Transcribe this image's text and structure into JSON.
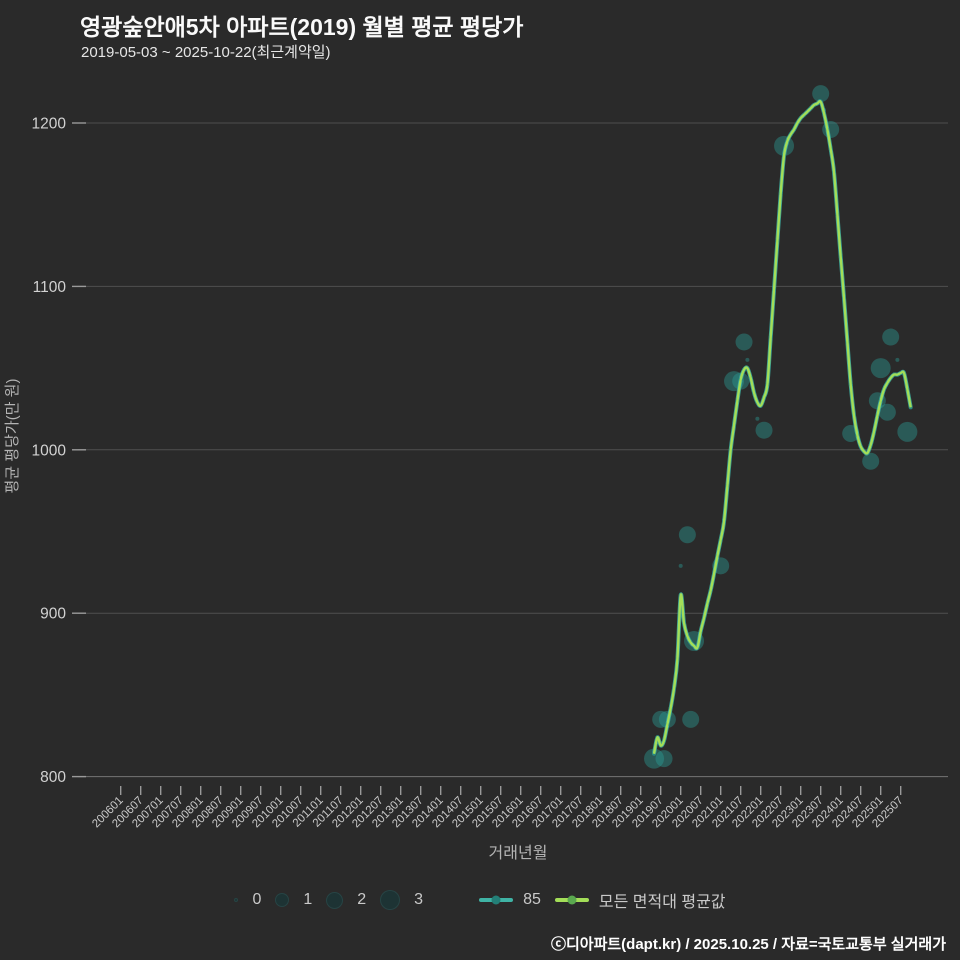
{
  "header": {
    "title": "영광숲안애5차 아파트(2019) 월별 평균 평당가",
    "subtitle": "2019-05-03 ~ 2025-10-22(최근계약일)"
  },
  "footer": {
    "credit": "ⓒ디아파트(dapt.kr) / 2025.10.25 / 자료=국토교통부 실거래가"
  },
  "colors": {
    "background": "#2a2a2a",
    "grid": "#4f4f4f",
    "axis": "#757575",
    "tick_text": "#c9c9c9",
    "axis_title_text": "#b3b3b3",
    "line_all": "#a3de58",
    "line_85": "#3fb3a5",
    "line_85_dot": "#2b8d85",
    "bubble_fill": "#2a9d97",
    "legend_dot_teal": "#237f77",
    "legend_dot_green": "#5aa84f",
    "legend_size_fill": "#1d3334"
  },
  "legend": {
    "size_labels": [
      "0",
      "1",
      "2",
      "3"
    ],
    "size_radii": [
      2,
      7,
      8.5,
      10
    ],
    "series_85_label": "85",
    "series_all_label": "모든 면적대 평균값"
  },
  "chart_data": {
    "type": "line",
    "title": "영광숲안애5차 아파트(2019) 월별 평균 평당가",
    "xlabel": "거래년월",
    "ylabel": "평균 평당가(만 원)",
    "ylim": [
      800,
      1230
    ],
    "yticks": [
      800,
      900,
      1000,
      1100,
      1200
    ],
    "xtick_labels": [
      "200601",
      "200607",
      "200701",
      "200707",
      "200801",
      "200807",
      "200901",
      "200907",
      "201001",
      "201007",
      "201101",
      "201107",
      "201201",
      "201207",
      "201301",
      "201307",
      "201401",
      "201407",
      "201501",
      "201507",
      "201601",
      "201607",
      "201701",
      "201707",
      "201801",
      "201807",
      "201901",
      "201907",
      "202001",
      "202007",
      "202101",
      "202107",
      "202201",
      "202207",
      "202301",
      "202307",
      "202401",
      "202407",
      "202501",
      "202507"
    ],
    "grid": true,
    "legend_position": "bottom",
    "series": [
      {
        "name": "모든 면적대 평균값",
        "kind": "smooth-line",
        "start_month": "2019-05",
        "values": [
          814,
          824,
          819,
          822,
          832,
          842,
          854,
          872,
          911,
          894,
          886,
          882,
          880,
          879,
          889,
          897,
          906,
          914,
          924,
          935,
          945,
          956,
          978,
          1000,
          1015,
          1030,
          1043,
          1049,
          1050,
          1044,
          1035,
          1029,
          1027,
          1032,
          1040,
          1069,
          1098,
          1128,
          1157,
          1180,
          1189,
          1193,
          1196,
          1200,
          1203,
          1205,
          1207,
          1209,
          1211,
          1212,
          1213,
          1206,
          1196,
          1184,
          1170,
          1144,
          1118,
          1093,
          1066,
          1040,
          1021,
          1009,
          1002,
          999,
          998,
          1003,
          1011,
          1021,
          1030,
          1037,
          1041,
          1044,
          1046,
          1046,
          1047,
          1047,
          1037,
          1026
        ]
      },
      {
        "name": "85",
        "kind": "smooth-line-with-dots",
        "start_month": "2019-05",
        "values": [
          814,
          824,
          819,
          822,
          832,
          842,
          854,
          872,
          911,
          894,
          886,
          882,
          880,
          879,
          889,
          897,
          906,
          914,
          924,
          935,
          945,
          956,
          978,
          1000,
          1015,
          1030,
          1043,
          1049,
          1050,
          1044,
          1035,
          1029,
          1027,
          1032,
          1040,
          1069,
          1098,
          1128,
          1157,
          1180,
          1189,
          1193,
          1196,
          1200,
          1203,
          1205,
          1207,
          1209,
          1211,
          1212,
          1213,
          1206,
          1196,
          1184,
          1170,
          1144,
          1118,
          1093,
          1066,
          1040,
          1021,
          1009,
          1002,
          999,
          998,
          1003,
          1011,
          1021,
          1030,
          1037,
          1041,
          1044,
          1046,
          1046,
          1047,
          1047,
          1037,
          1026
        ]
      },
      {
        "name": "85-scatter",
        "kind": "bubble",
        "points": [
          {
            "ym": "2019-05",
            "value": 811,
            "count": 3
          },
          {
            "ym": "2019-07",
            "value": 835,
            "count": 2
          },
          {
            "ym": "2019-08",
            "value": 811,
            "count": 2
          },
          {
            "ym": "2019-09",
            "value": 835,
            "count": 2
          },
          {
            "ym": "2020-01",
            "value": 929,
            "count": 0
          },
          {
            "ym": "2020-03",
            "value": 948,
            "count": 2
          },
          {
            "ym": "2020-04",
            "value": 835,
            "count": 2
          },
          {
            "ym": "2020-05",
            "value": 883,
            "count": 3
          },
          {
            "ym": "2021-01",
            "value": 929,
            "count": 2
          },
          {
            "ym": "2021-02",
            "value": 957,
            "count": 0
          },
          {
            "ym": "2021-05",
            "value": 1042,
            "count": 3
          },
          {
            "ym": "2021-07",
            "value": 1042,
            "count": 2
          },
          {
            "ym": "2021-08",
            "value": 1066,
            "count": 2
          },
          {
            "ym": "2021-09",
            "value": 1055,
            "count": 0
          },
          {
            "ym": "2021-12",
            "value": 1019,
            "count": 0
          },
          {
            "ym": "2022-02",
            "value": 1012,
            "count": 2
          },
          {
            "ym": "2022-08",
            "value": 1186,
            "count": 3
          },
          {
            "ym": "2023-07",
            "value": 1218,
            "count": 2
          },
          {
            "ym": "2023-08",
            "value": 1208,
            "count": 0
          },
          {
            "ym": "2023-10",
            "value": 1196,
            "count": 2
          },
          {
            "ym": "2024-04",
            "value": 1010,
            "count": 2
          },
          {
            "ym": "2024-10",
            "value": 993,
            "count": 2
          },
          {
            "ym": "2024-12",
            "value": 1030,
            "count": 2
          },
          {
            "ym": "2025-01",
            "value": 1050,
            "count": 3
          },
          {
            "ym": "2025-03",
            "value": 1023,
            "count": 2
          },
          {
            "ym": "2025-04",
            "value": 1069,
            "count": 2
          },
          {
            "ym": "2025-06",
            "value": 1055,
            "count": 0
          },
          {
            "ym": "2025-09",
            "value": 1011,
            "count": 3
          }
        ]
      }
    ]
  }
}
